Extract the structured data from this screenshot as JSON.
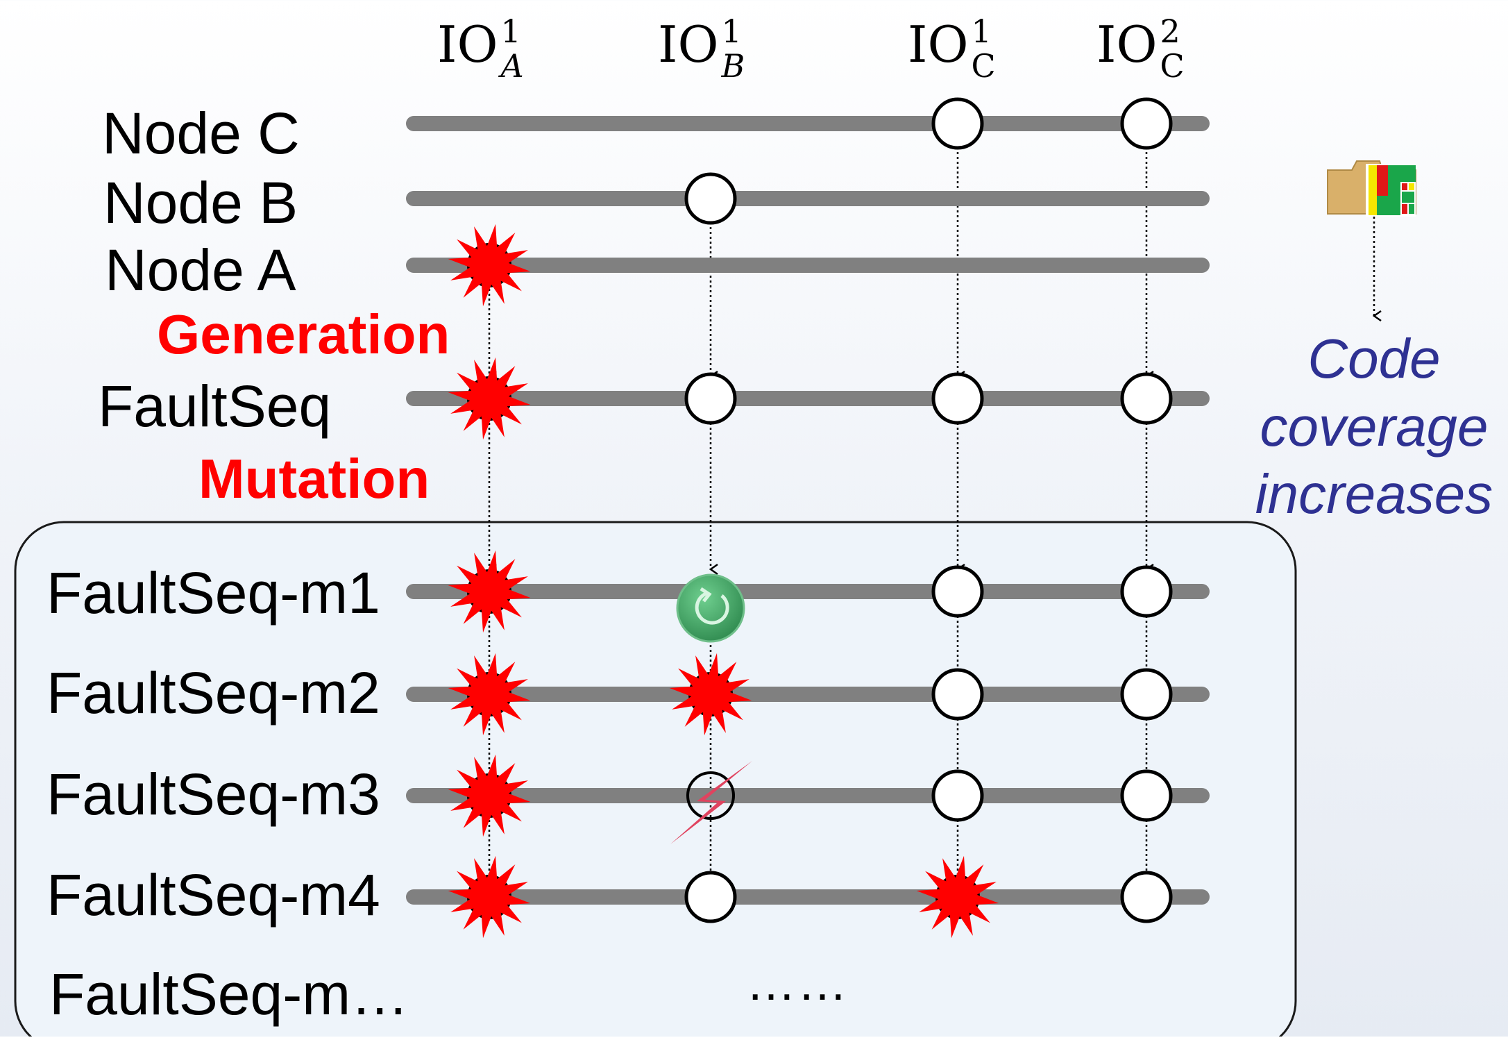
{
  "columns": [
    {
      "base": "IO",
      "sup": "1",
      "sub": "A",
      "sub_italic": true
    },
    {
      "base": "IO",
      "sup": "1",
      "sub": "B",
      "sub_italic": true
    },
    {
      "base": "IO",
      "sup": "1",
      "sub": "C",
      "sub_italic": false
    },
    {
      "base": "IO",
      "sup": "2",
      "sub": "C",
      "sub_italic": false
    }
  ],
  "rows": [
    {
      "label": "Node C",
      "events": [
        "none",
        "none",
        "io",
        "io"
      ]
    },
    {
      "label": "Node B",
      "events": [
        "none",
        "io",
        "none",
        "none"
      ]
    },
    {
      "label": "Node A",
      "events": [
        "crash",
        "none",
        "none",
        "none"
      ]
    },
    {
      "label": "FaultSeq",
      "events": [
        "crash",
        "io",
        "io",
        "io"
      ]
    },
    {
      "label": "FaultSeq-m1",
      "events": [
        "crash",
        "reboot",
        "io",
        "io"
      ]
    },
    {
      "label": "FaultSeq-m2",
      "events": [
        "crash",
        "crash",
        "io",
        "io"
      ]
    },
    {
      "label": "FaultSeq-m3",
      "events": [
        "crash",
        "partition",
        "io",
        "io"
      ]
    },
    {
      "label": "FaultSeq-m4",
      "events": [
        "crash",
        "io",
        "crash",
        "io"
      ]
    },
    {
      "label": "FaultSeq-m…",
      "events": []
    }
  ],
  "stages": {
    "generation": "Generation",
    "mutation": "Mutation"
  },
  "ellipsis": "……",
  "coverage": {
    "line1": "Code",
    "line2": "coverage",
    "line3": "increases",
    "icon": "coverage-treemap-folder-icon"
  },
  "colors": {
    "timeline": "#808080",
    "crash": "#ff0000",
    "reboot": "#3aa35f",
    "partition": "#e0435f",
    "stage_label": "#ff0000",
    "coverage_text": "#2e3192",
    "mutation_box": "#eef4fa"
  }
}
